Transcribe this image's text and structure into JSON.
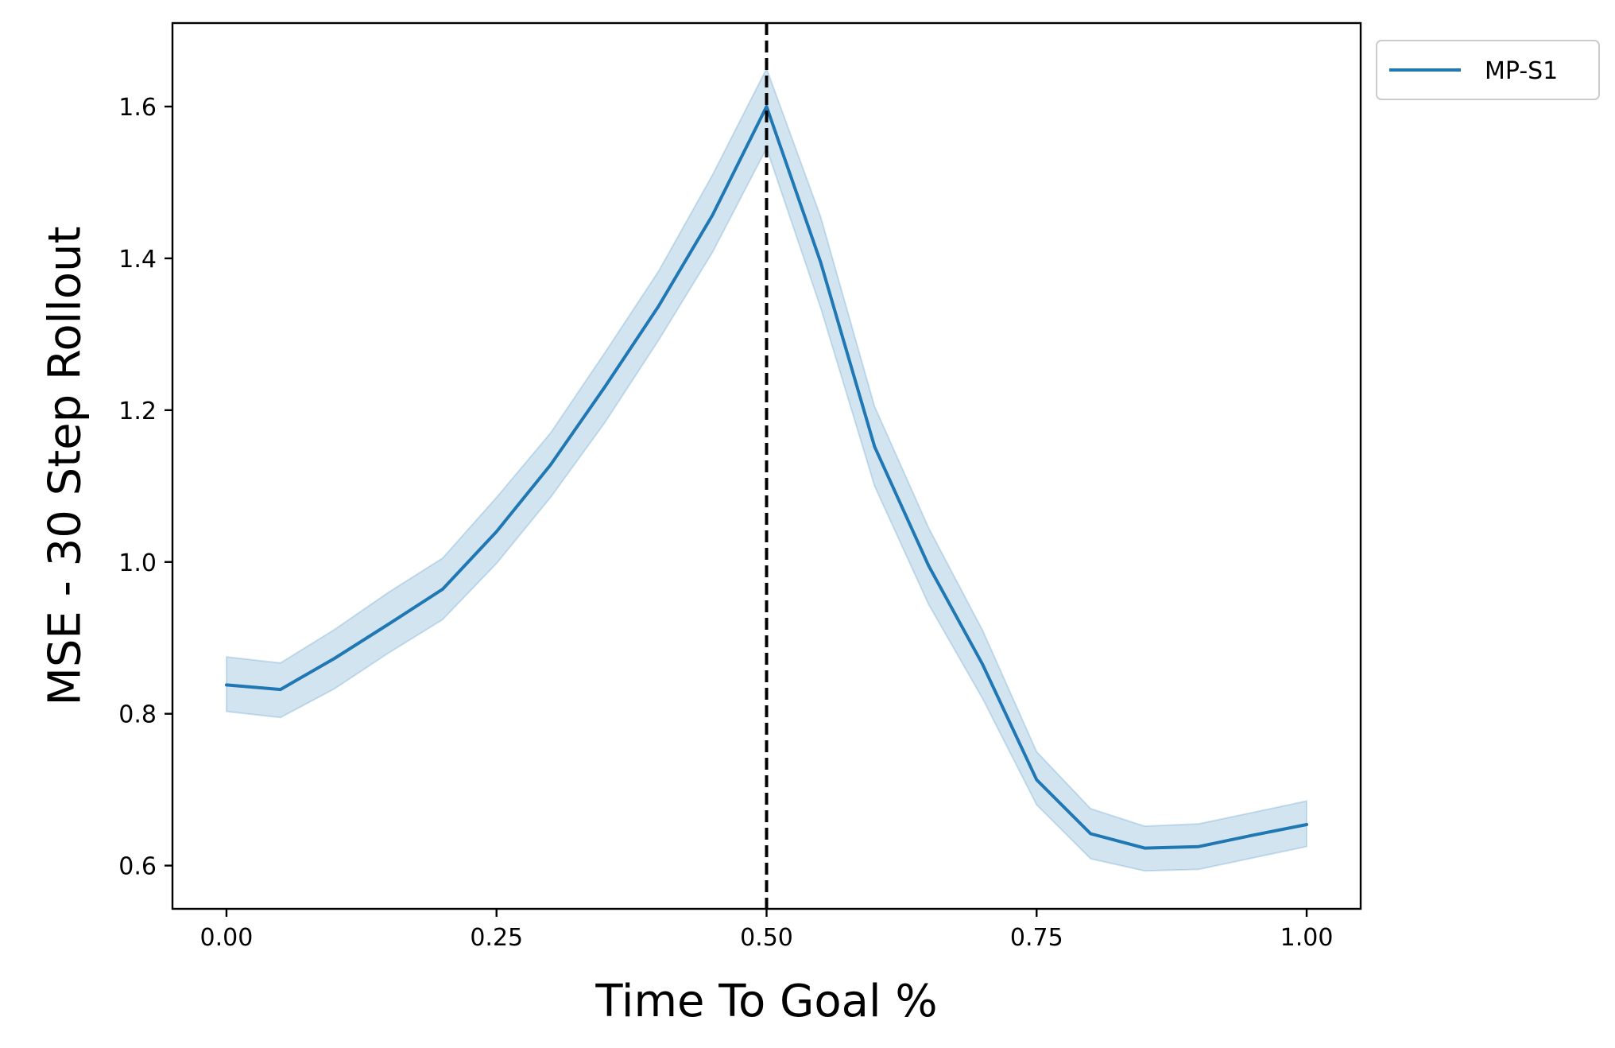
{
  "chart_data": {
    "type": "line",
    "title": "",
    "xlabel": "Time To Goal %",
    "ylabel": "MSE - 30 Step Rollout",
    "xlim": [
      -0.05,
      1.05
    ],
    "ylim": [
      0.543,
      1.71
    ],
    "xticks": [
      0.0,
      0.25,
      0.5,
      0.75,
      1.0
    ],
    "xtick_labels": [
      "0.00",
      "0.25",
      "0.50",
      "0.75",
      "1.00"
    ],
    "yticks": [
      0.6,
      0.8,
      1.0,
      1.2,
      1.4,
      1.6
    ],
    "ytick_labels": [
      "0.6",
      "0.8",
      "1.0",
      "1.2",
      "1.4",
      "1.6"
    ],
    "grid": false,
    "legend_position": "outside top-right",
    "vline": {
      "x": 0.5,
      "style": "dashed",
      "color": "#000000"
    },
    "series": [
      {
        "name": "MP-S1",
        "color": "#1f77b4",
        "band_color": "#1f77b4",
        "x": [
          0.0,
          0.05,
          0.1,
          0.15,
          0.2,
          0.25,
          0.3,
          0.35,
          0.4,
          0.45,
          0.5,
          0.55,
          0.6,
          0.65,
          0.7,
          0.75,
          0.8,
          0.85,
          0.9,
          0.95,
          1.0
        ],
        "y": [
          0.838,
          0.832,
          0.873,
          0.918,
          0.964,
          1.04,
          1.128,
          1.23,
          1.337,
          1.457,
          1.6,
          1.395,
          1.152,
          0.995,
          0.865,
          0.713,
          0.642,
          0.623,
          0.625,
          0.64,
          0.654
        ],
        "lower": [
          0.803,
          0.795,
          0.833,
          0.88,
          0.924,
          0.998,
          1.085,
          1.183,
          1.292,
          1.408,
          1.545,
          1.335,
          1.1,
          0.944,
          0.82,
          0.68,
          0.609,
          0.593,
          0.595,
          0.61,
          0.625
        ],
        "upper": [
          0.875,
          0.867,
          0.911,
          0.96,
          1.005,
          1.085,
          1.17,
          1.275,
          1.383,
          1.51,
          1.65,
          1.455,
          1.205,
          1.045,
          0.91,
          0.75,
          0.675,
          0.652,
          0.655,
          0.67,
          0.685
        ]
      }
    ]
  }
}
